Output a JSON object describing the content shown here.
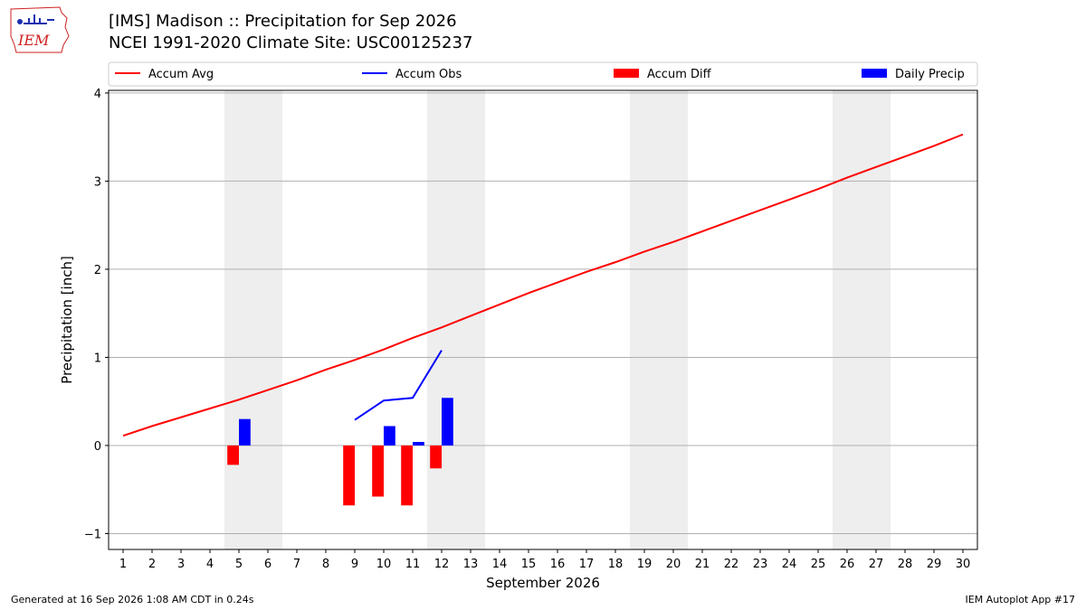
{
  "header": {
    "title_line1": "[IMS] Madison :: Precipitation for Sep 2026",
    "title_line2": "NCEI 1991-2020 Climate Site: USC00125237",
    "logo_text": "IEM"
  },
  "footer": {
    "left": "Generated at 16 Sep 2026 1:08 AM CDT in 0.24s",
    "right": "IEM Autoplot App #17"
  },
  "colors": {
    "avg": "#ff0000",
    "obs": "#0000ff",
    "diff": "#ff0000",
    "precip": "#0000ff",
    "weekend_band": "#eeeeee",
    "grid": "#b0b0b0"
  },
  "chart_data": {
    "type": "bar",
    "xlabel": "September 2026",
    "ylabel": "Precipitation [inch]",
    "xlim": [
      0.5,
      30.5
    ],
    "ylim": [
      -1.18,
      4.03
    ],
    "x_ticks": [
      1,
      2,
      3,
      4,
      5,
      6,
      7,
      8,
      9,
      10,
      11,
      12,
      13,
      14,
      15,
      16,
      17,
      18,
      19,
      20,
      21,
      22,
      23,
      24,
      25,
      26,
      27,
      28,
      29,
      30
    ],
    "y_ticks": [
      -1,
      0,
      1,
      2,
      3,
      4
    ],
    "grid": "horizontal",
    "legend_position": "top",
    "weekend_bands": [
      [
        5,
        6
      ],
      [
        12,
        13
      ],
      [
        19,
        20
      ],
      [
        26,
        27
      ]
    ],
    "legend": [
      "Accum Avg",
      "Accum Obs",
      "Accum Diff",
      "Daily Precip"
    ],
    "accum_avg": {
      "name": "Accum Avg",
      "x": [
        1,
        2,
        3,
        4,
        5,
        6,
        7,
        8,
        9,
        10,
        11,
        12,
        13,
        14,
        15,
        16,
        17,
        18,
        19,
        20,
        21,
        22,
        23,
        24,
        25,
        26,
        27,
        28,
        29,
        30
      ],
      "values": [
        0.11,
        0.22,
        0.32,
        0.42,
        0.52,
        0.63,
        0.74,
        0.86,
        0.97,
        1.09,
        1.22,
        1.34,
        1.47,
        1.6,
        1.73,
        1.85,
        1.97,
        2.08,
        2.2,
        2.31,
        2.43,
        2.55,
        2.67,
        2.79,
        2.91,
        3.04,
        3.16,
        3.28,
        3.4,
        3.53
      ]
    },
    "accum_obs": {
      "name": "Accum Obs",
      "x": [
        9,
        10,
        11,
        12
      ],
      "values": [
        0.29,
        0.51,
        0.54,
        1.08
      ]
    },
    "accum_diff": {
      "name": "Accum Diff",
      "x": [
        5,
        9,
        10,
        11,
        12
      ],
      "values": [
        -0.22,
        -0.68,
        -0.58,
        -0.68,
        -0.26
      ]
    },
    "daily_precip": {
      "name": "Daily Precip",
      "x": [
        5,
        10,
        11,
        12
      ],
      "values": [
        0.3,
        0.22,
        0.04,
        0.54
      ]
    }
  }
}
